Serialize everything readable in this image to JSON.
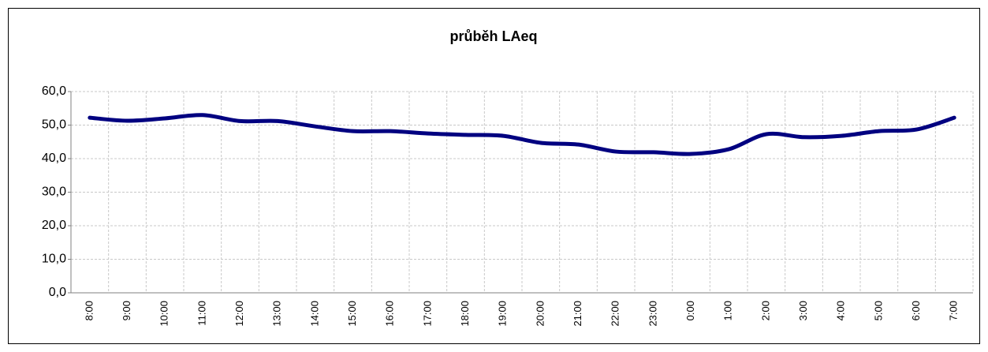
{
  "chart_data": {
    "type": "line",
    "title": "průběh LAeq",
    "categories": [
      "8:00",
      "9:00",
      "10:00",
      "11:00",
      "12:00",
      "13:00",
      "14:00",
      "15:00",
      "16:00",
      "17:00",
      "18:00",
      "19:00",
      "20:00",
      "21:00",
      "22:00",
      "23:00",
      "0:00",
      "1:00",
      "2:00",
      "3:00",
      "4:00",
      "5:00",
      "6:00",
      "7:00"
    ],
    "series": [
      {
        "name": "LAeq",
        "color": "#000080",
        "values": [
          52.2,
          51.3,
          52.0,
          53.0,
          51.2,
          51.2,
          49.6,
          48.2,
          48.2,
          47.5,
          47.1,
          46.8,
          44.7,
          44.2,
          42.1,
          41.9,
          41.4,
          42.8,
          47.3,
          46.4,
          46.8,
          48.2,
          48.7,
          52.2
        ]
      }
    ],
    "ylim": [
      0,
      60
    ],
    "yticks": [
      {
        "value": 0,
        "label": "0,0"
      },
      {
        "value": 10,
        "label": "10,0"
      },
      {
        "value": 20,
        "label": "20,0"
      },
      {
        "value": 30,
        "label": "30,0"
      },
      {
        "value": 40,
        "label": "40,0"
      },
      {
        "value": 50,
        "label": "50,0"
      },
      {
        "value": 60,
        "label": "60,0"
      }
    ],
    "grid": true
  }
}
